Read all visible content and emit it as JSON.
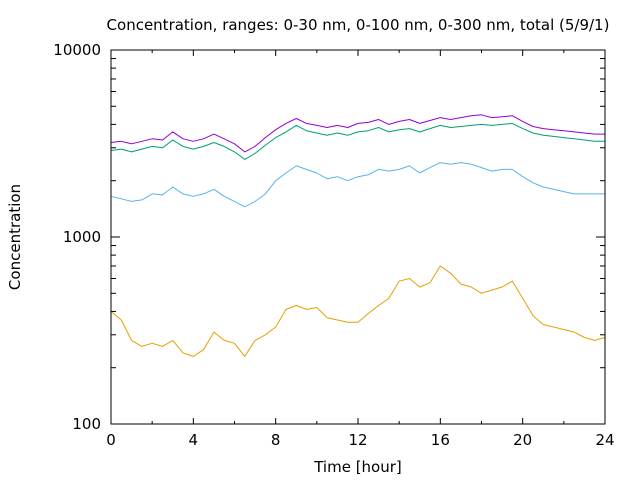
{
  "chart_data": {
    "type": "line",
    "title": "Concentration, ranges: 0-30 nm, 0-100 nm, 0-300 nm, total (5/9/1)",
    "xlabel": "Time [hour]",
    "ylabel": "Concentration",
    "xlim": [
      0,
      24
    ],
    "ylim": [
      100,
      10000
    ],
    "yscale": "log",
    "grid": false,
    "x_ticks": [
      0,
      4,
      8,
      12,
      16,
      20,
      24
    ],
    "x_tick_labels": [
      "0",
      "4",
      "8",
      "12",
      "16",
      "20",
      "24"
    ],
    "y_ticks": [
      100,
      1000,
      10000
    ],
    "y_tick_labels": [
      "100",
      "1000",
      "10000"
    ],
    "x": [
      0,
      0.5,
      1,
      1.5,
      2,
      2.5,
      3,
      3.5,
      4,
      4.5,
      5,
      5.5,
      6,
      6.5,
      7,
      7.5,
      8,
      8.5,
      9,
      9.5,
      10,
      10.5,
      11,
      11.5,
      12,
      12.5,
      13,
      13.5,
      14,
      14.5,
      15,
      15.5,
      16,
      16.5,
      17,
      17.5,
      18,
      18.5,
      19,
      19.5,
      20,
      20.5,
      21,
      21.5,
      22,
      22.5,
      23,
      23.5,
      24
    ],
    "series": [
      {
        "color": "#e69f00",
        "values": [
          400,
          360,
          280,
          260,
          270,
          260,
          280,
          240,
          230,
          250,
          310,
          280,
          270,
          230,
          280,
          300,
          330,
          410,
          430,
          410,
          420,
          370,
          360,
          350,
          350,
          390,
          430,
          470,
          580,
          600,
          540,
          570,
          700,
          640,
          560,
          540,
          500,
          520,
          540,
          580,
          470,
          380,
          340,
          330,
          320,
          310,
          290,
          280,
          290
        ]
      },
      {
        "color": "#56b4e9",
        "values": [
          1650,
          1600,
          1550,
          1580,
          1700,
          1680,
          1850,
          1700,
          1650,
          1700,
          1800,
          1650,
          1550,
          1450,
          1550,
          1700,
          2000,
          2200,
          2400,
          2300,
          2200,
          2050,
          2100,
          2000,
          2100,
          2150,
          2300,
          2250,
          2300,
          2400,
          2200,
          2350,
          2500,
          2450,
          2500,
          2450,
          2350,
          2250,
          2300,
          2300,
          2100,
          1950,
          1850,
          1800,
          1750,
          1700,
          1700,
          1700,
          1700
        ]
      },
      {
        "color": "#009e73",
        "values": [
          2900,
          2950,
          2850,
          2950,
          3050,
          3000,
          3300,
          3050,
          2950,
          3050,
          3200,
          3050,
          2850,
          2600,
          2800,
          3100,
          3400,
          3650,
          3950,
          3700,
          3600,
          3500,
          3600,
          3500,
          3650,
          3700,
          3850,
          3650,
          3750,
          3800,
          3650,
          3800,
          3950,
          3850,
          3900,
          3950,
          4000,
          3950,
          4000,
          4050,
          3800,
          3600,
          3500,
          3450,
          3400,
          3350,
          3300,
          3250,
          3250
        ]
      },
      {
        "color": "#9400d3",
        "values": [
          3200,
          3250,
          3150,
          3250,
          3350,
          3300,
          3650,
          3350,
          3250,
          3350,
          3550,
          3350,
          3150,
          2850,
          3050,
          3400,
          3750,
          4050,
          4300,
          4050,
          3950,
          3850,
          3950,
          3850,
          4050,
          4100,
          4250,
          4000,
          4150,
          4250,
          4050,
          4200,
          4350,
          4250,
          4350,
          4450,
          4500,
          4350,
          4400,
          4450,
          4150,
          3900,
          3800,
          3750,
          3700,
          3650,
          3600,
          3550,
          3550
        ]
      }
    ]
  }
}
